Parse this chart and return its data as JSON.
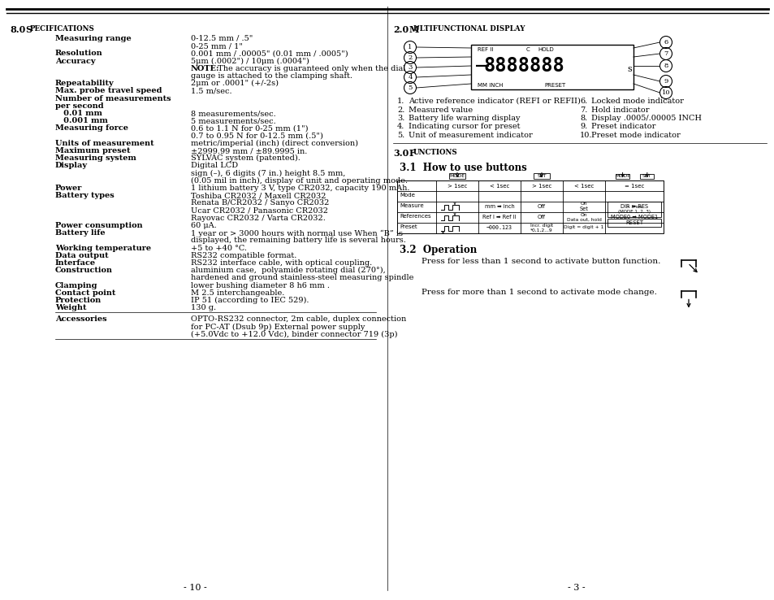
{
  "page_background": "#ffffff",
  "left_specs": [
    [
      "Measuring range",
      "0-12.5 mm / .5\""
    ],
    [
      "",
      "0-25 mm / 1\""
    ],
    [
      "Resolution",
      "0.001 mm / .00005\" (0.01 mm / .0005\")"
    ],
    [
      "Accuracy",
      "5μm (.0002\") / 10μm (.0004\")"
    ],
    [
      "",
      "NOTE: The accuracy is guaranteed only when the dial"
    ],
    [
      "",
      "gauge is attached to the clamping shaft."
    ],
    [
      "Repeatability",
      "2μm or .0001\" (+/-2s)"
    ],
    [
      "Max. probe travel speed",
      "1.5 m/sec."
    ],
    [
      "Number of measurements",
      ""
    ],
    [
      "per second",
      ""
    ],
    [
      "   0.01 mm",
      "8 measurements/sec."
    ],
    [
      "   0.001 mm",
      "5 measurements/sec."
    ],
    [
      "Measuring force",
      "0.6 to 1.1 N for 0-25 mm (1\")"
    ],
    [
      "",
      "0.7 to 0.95 N for 0-12.5 mm (.5\")"
    ],
    [
      "Units of measurement",
      "metric/imperial (inch) (direct conversion)"
    ],
    [
      "Maximum preset",
      "±2999.99 mm / ±89.9995 in."
    ],
    [
      "Measuring system",
      "SYLVAC system (patented)."
    ],
    [
      "Display",
      "Digital LCD"
    ],
    [
      "",
      "sign (–), 6 digits (7 in.) height 8.5 mm,"
    ],
    [
      "",
      "(0.05 mil in inch), display of unit and operating mode."
    ],
    [
      "Power",
      "1 lithium battery 3 V, type CR2032, capacity 190 mAh."
    ],
    [
      "Battery types",
      "Toshiba CR2032 / Maxell CR2032"
    ],
    [
      "",
      "Renata B/CR2032 / Sanyo CR2032"
    ],
    [
      "",
      "Ucar CR2032 / Panasonic CR2032"
    ],
    [
      "",
      "Rayovac CR2032 / Varta CR2032."
    ],
    [
      "Power consumption",
      "60 μA."
    ],
    [
      "Battery life",
      "1 year or > 3000 hours with normal use When “B” is"
    ],
    [
      "",
      "displayed, the remaining battery life is several hours."
    ],
    [
      "Working temperature",
      "+5 to +40 °C."
    ],
    [
      "Data output",
      "RS232 compatible format."
    ],
    [
      "Interface",
      "RS232 interface cable, with optical coupling."
    ],
    [
      "Construction",
      "aluminium case,  polyamide rotating dial (270°),"
    ],
    [
      "",
      "hardened and ground stainless-steel measuring spindle"
    ],
    [
      "Clamping",
      "lower bushing diameter 8 h6 mm ."
    ],
    [
      "Contact point",
      "M 2.5 interchangeable."
    ],
    [
      "Protection",
      "IP 51 (according to IEC 529)."
    ],
    [
      "Weight",
      "130 g."
    ]
  ],
  "bold_labels": [
    "Measuring range",
    "Resolution",
    "Accuracy",
    "Repeatability",
    "Max. probe travel speed",
    "Number of measurements",
    "per second",
    "   0.01 mm",
    "   0.001 mm",
    "Measuring force",
    "Units of measurement",
    "Maximum preset",
    "Measuring system",
    "Display",
    "Power",
    "Battery types",
    "Power consumption",
    "Battery life",
    "Working temperature",
    "Data output",
    "Interface",
    "Construction",
    "Clamping",
    "Contact point",
    "Protection",
    "Weight"
  ],
  "note_bold_prefix": "NOTE:",
  "accessories_value": [
    "OPTO-RS232 connector, 2m cable, duplex connection",
    "for PC-AT (Dsub 9p) External power supply",
    "(+5.0Vdc to +12.0 Vdc), binder connector 719 (3p)"
  ],
  "footer_left": "- 10 -",
  "footer_right": "- 3 -",
  "items_left": [
    "Active reference indicator (REFI or REFII)",
    "Measured value",
    "Battery life warning display",
    "Indicating cursor for preset",
    "Unit of measurement indicator"
  ],
  "items_right": [
    "Locked mode indicator",
    "Hold indicator",
    "Display .0005/.00005 INCH",
    "Preset indicator",
    "Preset mode indicator"
  ],
  "op_text1": "Press for less than 1 second to activate button function.",
  "op_text2": "Press for more than 1 second to activate mode change."
}
